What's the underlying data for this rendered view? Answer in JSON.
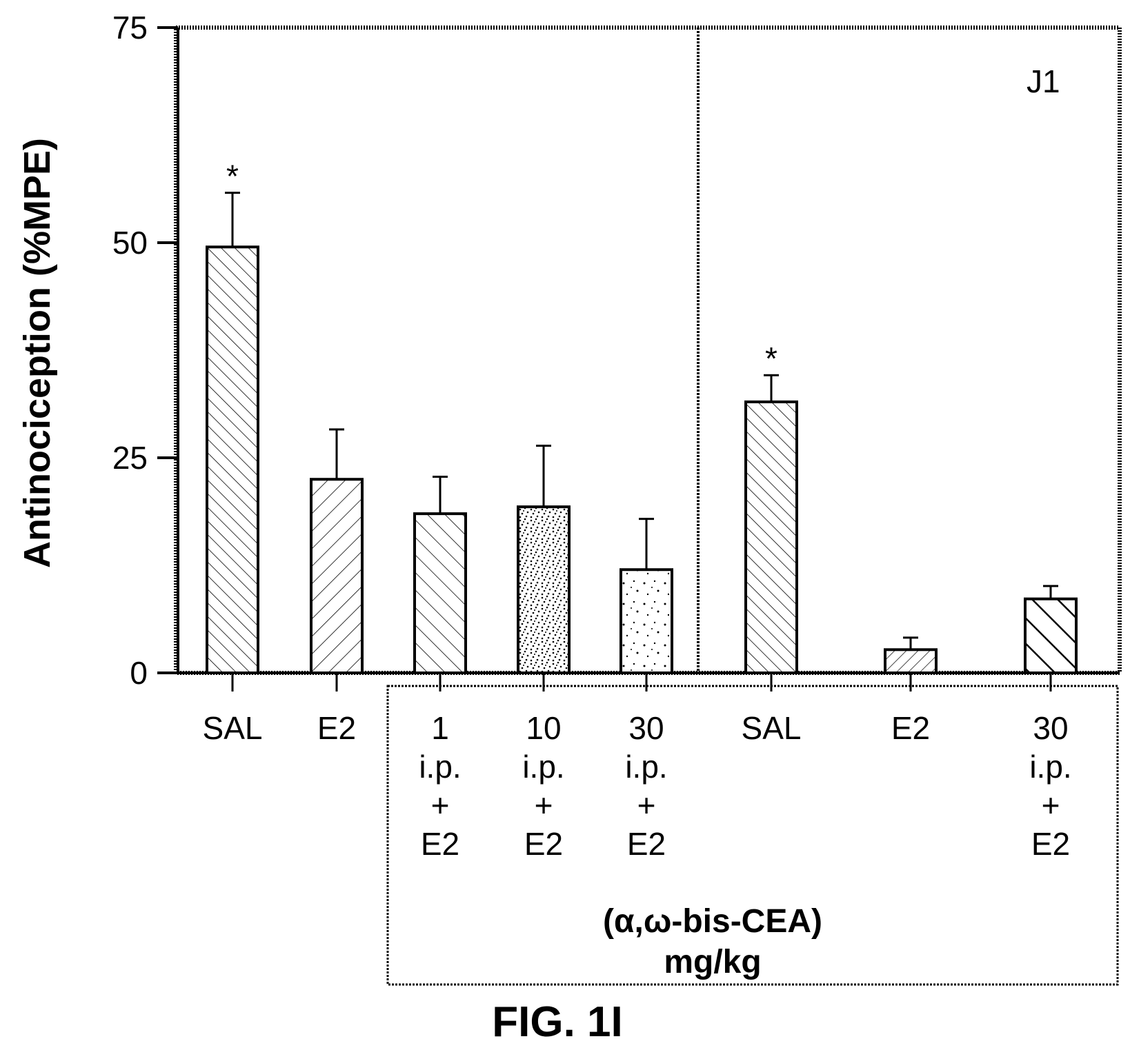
{
  "figure_label": "FIG. 1I",
  "chart_data": {
    "type": "bar",
    "panel_label": "J1",
    "ylabel": "Antinociception (%MPE)",
    "xlabel": "",
    "ylim": [
      0,
      75
    ],
    "yticks": [
      "0",
      "25",
      "50",
      "75"
    ],
    "grid": false,
    "dose_group_label": [
      "(α,ω-bis-CEA)",
      "mg/kg"
    ],
    "categories": [
      [
        "SAL"
      ],
      [
        "E2"
      ],
      [
        "1",
        "i.p.",
        "+",
        "E2"
      ],
      [
        "10",
        "i.p.",
        "+",
        "E2"
      ],
      [
        "30",
        "i.p.",
        "+",
        "E2"
      ],
      [
        "SAL"
      ],
      [
        "E2"
      ],
      [
        "30",
        "i.p.",
        "+",
        "E2"
      ]
    ],
    "series": [
      {
        "values": [
          49.5,
          22.5,
          18.5,
          19.3,
          12.0,
          31.5,
          2.7,
          8.6
        ],
        "errors": [
          6.3,
          5.8,
          4.3,
          7.1,
          5.9,
          3.1,
          1.4,
          1.5
        ],
        "significance": [
          "*",
          "",
          "",
          "",
          "",
          "*",
          "",
          ""
        ],
        "fill_patterns": [
          "diag-back-fine",
          "diag-fwd",
          "diag-back",
          "dots-dense",
          "dots-sparse",
          "diag-back-fine",
          "diag-fwd-fine",
          "diag-back-bold"
        ]
      }
    ]
  }
}
